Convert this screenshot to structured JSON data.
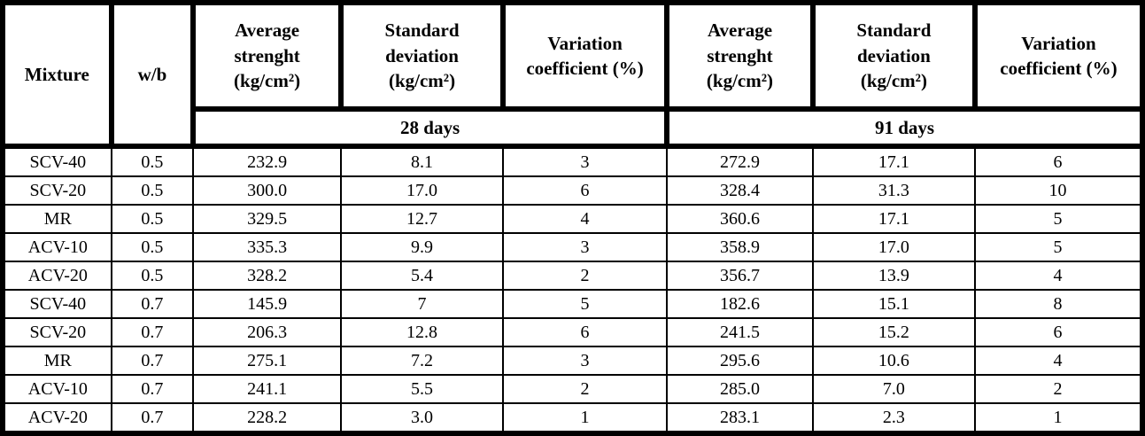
{
  "table": {
    "headers": {
      "mixture": "Mixture",
      "wb": "w/b",
      "avg_strength": "Average\nstrenght\n(kg/cm²)",
      "std_deviation": "Standard\ndeviation\n(kg/cm²)",
      "variation_coeff": "Variation\ncoefficient (%)"
    },
    "groups": [
      "28 days",
      "91 days"
    ],
    "column_keys": [
      "mixture",
      "wb",
      "avg-strength-28d",
      "std-deviation-28d",
      "variation-coeff-28d",
      "avg-strength-91d",
      "std-deviation-91d",
      "variation-coeff-91d"
    ],
    "rows": [
      [
        "SCV-40",
        "0.5",
        "232.9",
        "8.1",
        "3",
        "272.9",
        "17.1",
        "6"
      ],
      [
        "SCV-20",
        "0.5",
        "300.0",
        "17.0",
        "6",
        "328.4",
        "31.3",
        "10"
      ],
      [
        "MR",
        "0.5",
        "329.5",
        "12.7",
        "4",
        "360.6",
        "17.1",
        "5"
      ],
      [
        "ACV-10",
        "0.5",
        "335.3",
        "9.9",
        "3",
        "358.9",
        "17.0",
        "5"
      ],
      [
        "ACV-20",
        "0.5",
        "328.2",
        "5.4",
        "2",
        "356.7",
        "13.9",
        "4"
      ],
      [
        "SCV-40",
        "0.7",
        "145.9",
        "7",
        "5",
        "182.6",
        "15.1",
        "8"
      ],
      [
        "SCV-20",
        "0.7",
        "206.3",
        "12.8",
        "6",
        "241.5",
        "15.2",
        "6"
      ],
      [
        "MR",
        "0.7",
        "275.1",
        "7.2",
        "3",
        "295.6",
        "10.6",
        "4"
      ],
      [
        "ACV-10",
        "0.7",
        "241.1",
        "5.5",
        "2",
        "285.0",
        "7.0",
        "2"
      ],
      [
        "ACV-20",
        "0.7",
        "228.2",
        "3.0",
        "1",
        "283.1",
        "2.3",
        "1"
      ]
    ],
    "colors": {
      "border": "#000000",
      "background": "#ffffff",
      "text": "#000000"
    }
  }
}
